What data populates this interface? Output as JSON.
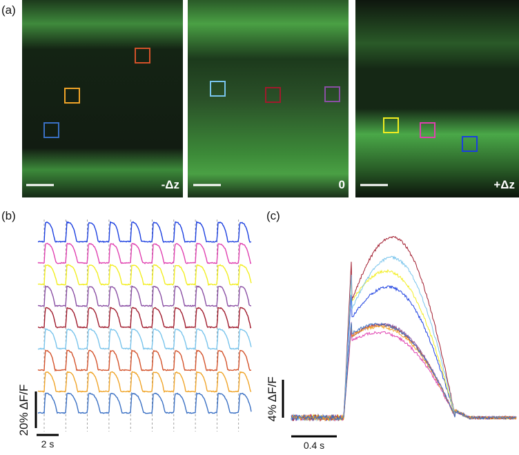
{
  "figure": {
    "panel_a": {
      "label": "(a)",
      "images": [
        {
          "tag": "-Δz"
        },
        {
          "tag": "0"
        },
        {
          "tag": "+Δz"
        }
      ]
    },
    "panel_b": {
      "label": "(b)",
      "scale_y": "20% ΔF/F",
      "scale_x": "2 s"
    },
    "panel_c": {
      "label": "(c)",
      "scale_y": "4% ΔF/F",
      "scale_x": "0.4 s"
    },
    "roi_colors": [
      "#1a3ee0",
      "#e040b0",
      "#f2ee20",
      "#8a4fa4",
      "#a01a2c",
      "#78c4ec",
      "#d4522a",
      "#f0a428",
      "#3a70c4"
    ]
  }
}
